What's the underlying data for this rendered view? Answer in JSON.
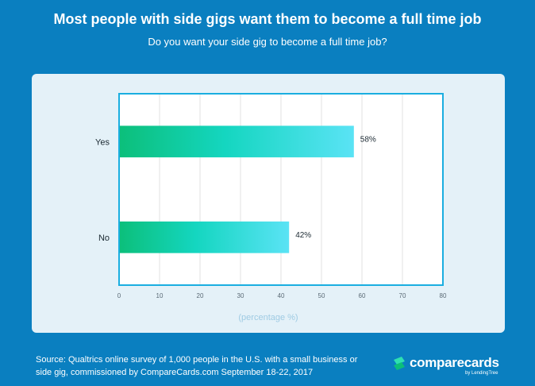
{
  "header": {
    "title": "Most people with side gigs want them to become a full time job",
    "subtitle": "Do you want your side gig to become a full time job?"
  },
  "footer": {
    "source_line1": "Source: Qualtrics online survey of 1,000 people in the U.S. with a small business or",
    "source_line2": "side gig, commissioned by CompareCards.com September 18-22, 2017",
    "logo_text": "comparecards",
    "logo_sub": "by LendingTree"
  },
  "colors": {
    "background": "#0a7fc0",
    "card": "#e4f1f8",
    "bar_start": "#0cbf7a",
    "bar_mid": "#14d6c0",
    "bar_end": "#5ae3f5",
    "frame": "#1aaee0"
  },
  "chart_data": {
    "type": "bar",
    "orientation": "horizontal",
    "categories": [
      "Yes",
      "No"
    ],
    "values": [
      58,
      42
    ],
    "value_labels": [
      "58%",
      "42%"
    ],
    "xlabel": "(percentage %)",
    "xlim": [
      0,
      80
    ],
    "xticks": [
      0,
      10,
      20,
      30,
      40,
      50,
      60,
      70,
      80
    ],
    "grid": true
  }
}
